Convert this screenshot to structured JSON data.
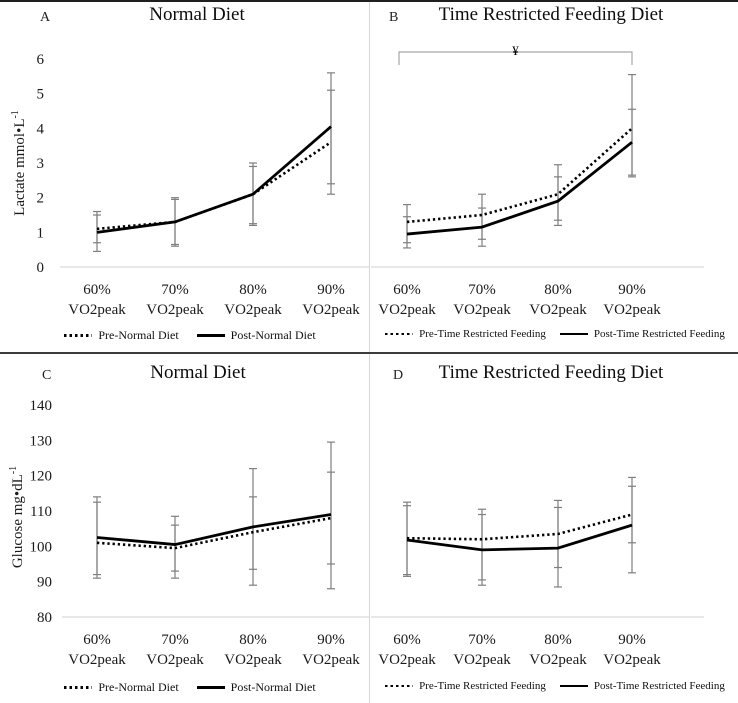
{
  "colors": {
    "line": "#000000",
    "error_bar": "#7f7f7f",
    "axis_line": "#d9d9d9",
    "bracket": "#a6a6a6",
    "divider": "#3c3c3c"
  },
  "chart_data": [
    {
      "panel_label": "A",
      "type": "line",
      "title": "Normal Diet",
      "ylabel": "Lactate mmol•L",
      "ylabel_sup": "-1",
      "xlabel": "",
      "categories": [
        "60% VO2peak",
        "70% VO2peak",
        "80% VO2peak",
        "90% VO2peak"
      ],
      "ylim": [
        0,
        6
      ],
      "yticks": [
        0,
        1,
        2,
        3,
        4,
        5,
        6
      ],
      "legend_position": "bottom",
      "grid": false,
      "series": [
        {
          "name": "Pre-Normal Diet",
          "style": "dotted",
          "values": [
            1.1,
            1.3,
            2.1,
            3.6
          ],
          "err_lo": [
            0.7,
            0.65,
            1.25,
            2.1
          ],
          "err_hi": [
            1.5,
            1.95,
            2.9,
            5.1
          ]
        },
        {
          "name": "Post-Normal Diet",
          "style": "solid",
          "values": [
            1.0,
            1.3,
            2.1,
            4.05
          ],
          "err_lo": [
            0.45,
            0.6,
            1.2,
            2.4
          ],
          "err_hi": [
            1.6,
            2.0,
            3.0,
            5.6
          ]
        }
      ]
    },
    {
      "panel_label": "B",
      "type": "line",
      "title": "Time Restricted Feeding Diet",
      "ylabel": "",
      "ylabel_sup": "",
      "xlabel": "",
      "categories": [
        "60% VO2peak",
        "70% VO2peak",
        "80% VO2peak",
        "90% VO2peak"
      ],
      "ylim": [
        0,
        6
      ],
      "yticks": null,
      "legend_position": "bottom",
      "grid": false,
      "annotation": {
        "symbol": "¥",
        "from": "60% VO2peak",
        "to": "90% VO2peak"
      },
      "series": [
        {
          "name": "Pre-Time Restricted Feeding",
          "style": "dotted",
          "values": [
            1.3,
            1.5,
            2.1,
            4.0
          ],
          "err_lo": [
            0.7,
            0.8,
            1.35,
            2.6
          ],
          "err_hi": [
            1.8,
            2.1,
            2.95,
            5.55
          ]
        },
        {
          "name": "Post-Time Restricted Feeding",
          "style": "solid",
          "values": [
            0.95,
            1.15,
            1.9,
            3.6
          ],
          "err_lo": [
            0.55,
            0.6,
            1.2,
            2.65
          ],
          "err_hi": [
            1.45,
            1.7,
            2.6,
            4.55
          ]
        }
      ]
    },
    {
      "panel_label": "C",
      "type": "line",
      "title": "Normal Diet",
      "ylabel": "Glucose mg•dL",
      "ylabel_sup": "-1",
      "xlabel": "",
      "categories": [
        "60% VO2peak",
        "70% VO2peak",
        "80% VO2peak",
        "90% VO2peak"
      ],
      "ylim": [
        80,
        140
      ],
      "yticks": [
        80,
        90,
        100,
        110,
        120,
        130,
        140
      ],
      "legend_position": "bottom",
      "grid": false,
      "series": [
        {
          "name": "Pre-Normal Diet",
          "style": "dotted",
          "values": [
            101,
            99.5,
            104,
            108
          ],
          "err_lo": [
            92,
            91,
            93.5,
            95
          ],
          "err_hi": [
            112.5,
            106,
            114,
            121
          ]
        },
        {
          "name": "Post-Normal Diet",
          "style": "solid",
          "values": [
            102.5,
            100.5,
            105.5,
            109
          ],
          "err_lo": [
            91,
            93,
            89,
            88
          ],
          "err_hi": [
            114,
            108.5,
            122,
            129.5
          ]
        }
      ]
    },
    {
      "panel_label": "D",
      "type": "line",
      "title": "Time Restricted Feeding Diet",
      "ylabel": "",
      "ylabel_sup": "",
      "xlabel": "",
      "categories": [
        "60% VO2peak",
        "70% VO2peak",
        "80% VO2peak",
        "90% VO2peak"
      ],
      "ylim": [
        80,
        140
      ],
      "yticks": null,
      "legend_position": "bottom",
      "grid": false,
      "series": [
        {
          "name": "Pre-Time Restricted Feeding",
          "style": "dotted",
          "values": [
            102.3,
            102,
            103.5,
            109
          ],
          "err_lo": [
            92,
            90.5,
            94,
            101
          ],
          "err_hi": [
            112.5,
            110.5,
            113,
            119.5
          ]
        },
        {
          "name": "Post-Time Restricted Feeding",
          "style": "solid",
          "values": [
            101.8,
            99,
            99.5,
            106
          ],
          "err_lo": [
            91.5,
            89,
            88.5,
            92.5
          ],
          "err_hi": [
            111.5,
            109,
            111,
            117
          ]
        }
      ]
    }
  ]
}
